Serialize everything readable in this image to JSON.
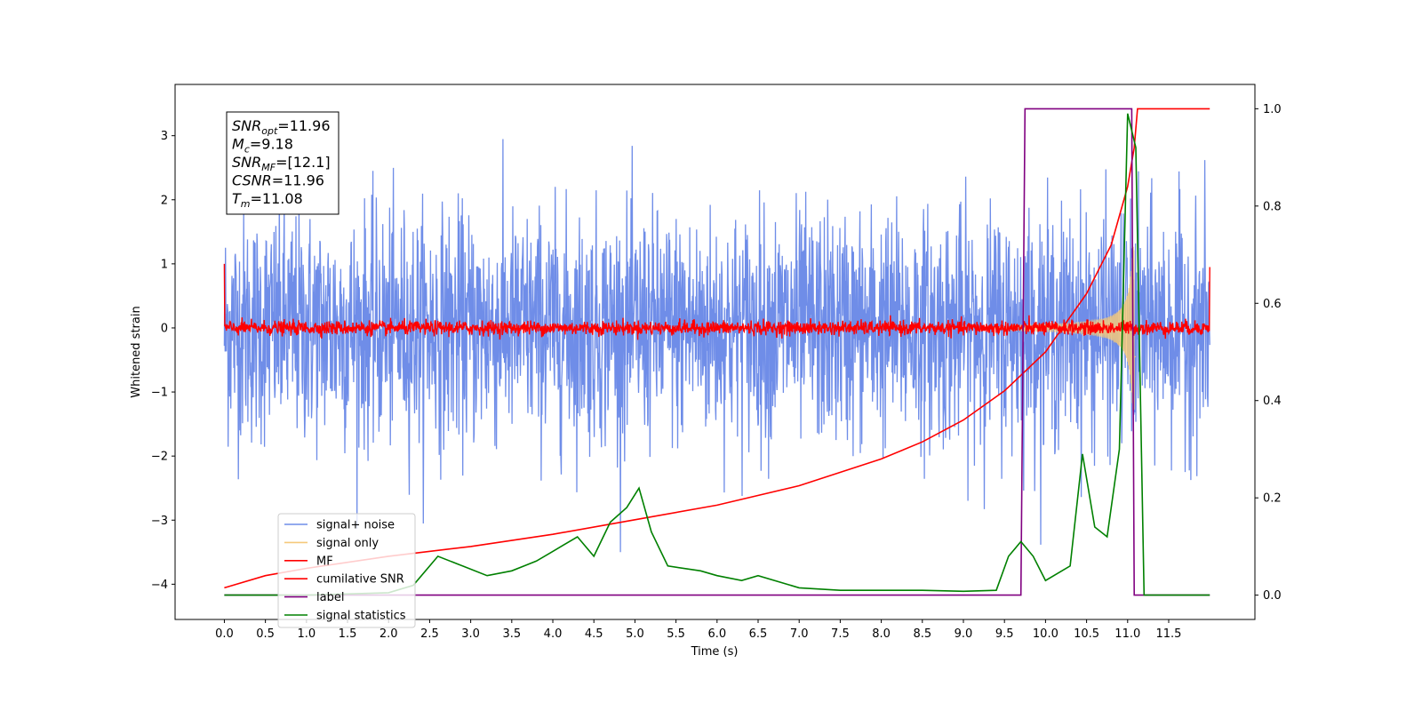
{
  "chart_data": {
    "type": "line",
    "xlabel": "Time (s)",
    "ylabel": "Whitened strain",
    "xlim": [
      -0.6,
      12.55
    ],
    "ylim": [
      -4.55,
      3.8
    ],
    "ylim_right": [
      -0.05,
      1.05
    ],
    "x_ticks": [
      0.0,
      0.5,
      1.0,
      1.5,
      2.0,
      2.5,
      3.0,
      3.5,
      4.0,
      4.5,
      5.0,
      5.5,
      6.0,
      6.5,
      7.0,
      7.5,
      8.0,
      8.5,
      9.0,
      9.5,
      10.0,
      10.5,
      11.0,
      11.5
    ],
    "x_tick_labels": [
      "0.0",
      "0.5",
      "1.0",
      "1.5",
      "2.0",
      "2.5",
      "3.0",
      "3.5",
      "4.0",
      "4.5",
      "5.0",
      "5.5",
      "6.0",
      "6.5",
      "7.0",
      "7.5",
      "8.0",
      "8.5",
      "9.0",
      "9.5",
      "10.0",
      "10.5",
      "11.0",
      "11.5"
    ],
    "y_ticks": [
      -4,
      -3,
      -2,
      -1,
      0,
      1,
      2,
      3
    ],
    "y_tick_labels": [
      "−4",
      "−3",
      "−2",
      "−1",
      "0",
      "1",
      "2",
      "3"
    ],
    "y_right_ticks": [
      0.0,
      0.2,
      0.4,
      0.6,
      0.8,
      1.0
    ],
    "y_right_tick_labels": [
      "0.0",
      "0.2",
      "0.4",
      "0.6",
      "0.8",
      "1.0"
    ],
    "grid": false,
    "legend_position": "lower-left",
    "annotation": [
      {
        "name": "SNR",
        "sub": "opt",
        "value": "=11.96"
      },
      {
        "name": "M",
        "sub": "c",
        "value": "=9.18"
      },
      {
        "name": "SNR",
        "sub": "MF",
        "value": "=[12.1]"
      },
      {
        "name": "CSNR",
        "sub": "",
        "value": "=11.96"
      },
      {
        "name": "T",
        "sub": "m",
        "value": "=11.08"
      }
    ],
    "series": [
      {
        "name": "signal+ noise",
        "color": "#6f8de8",
        "axis": "left",
        "note": "whitened noise, std approx 0.9, range approx -3.5 to 3.5"
      },
      {
        "name": "signal only",
        "color": "#f5c97a",
        "axis": "left",
        "note": "chirp from approx 9.5 s, envelope peaking approx 1.2 near 11.08 s"
      },
      {
        "name": "MF",
        "color": "#ff0000",
        "axis": "left",
        "note": "matched filter output, near 0 with approx 0.1 noise, edges approx 1.0"
      },
      {
        "name": "cumilative SNR",
        "color": "#ff0000",
        "axis": "right",
        "x": [
          0.0,
          0.5,
          1.0,
          2.0,
          3.0,
          4.0,
          5.0,
          6.0,
          7.0,
          8.0,
          8.5,
          9.0,
          9.5,
          10.0,
          10.5,
          10.8,
          11.0,
          11.08,
          11.12,
          12.0
        ],
        "values": [
          0.015,
          0.04,
          0.055,
          0.08,
          0.1,
          0.125,
          0.155,
          0.185,
          0.225,
          0.28,
          0.315,
          0.36,
          0.42,
          0.5,
          0.62,
          0.72,
          0.84,
          0.92,
          1.0,
          1.0
        ]
      },
      {
        "name": "label",
        "color": "#800080",
        "axis": "right",
        "x": [
          0.0,
          9.7,
          9.75,
          11.05,
          11.08,
          12.0
        ],
        "values": [
          0.0,
          0.0,
          1.0,
          1.0,
          0.0,
          0.0
        ]
      },
      {
        "name": "signal statistics",
        "color": "#008000",
        "axis": "right",
        "x": [
          0.0,
          1.0,
          2.0,
          2.3,
          2.6,
          2.9,
          3.2,
          3.5,
          3.8,
          4.0,
          4.3,
          4.5,
          4.7,
          4.9,
          5.05,
          5.2,
          5.4,
          5.8,
          6.0,
          6.3,
          6.5,
          7.0,
          7.5,
          8.0,
          8.5,
          9.0,
          9.4,
          9.55,
          9.7,
          9.85,
          10.0,
          10.3,
          10.45,
          10.6,
          10.75,
          10.9,
          11.0,
          11.1,
          11.2,
          12.0
        ],
        "values": [
          0.0,
          0.0,
          0.005,
          0.02,
          0.08,
          0.06,
          0.04,
          0.05,
          0.07,
          0.09,
          0.12,
          0.08,
          0.15,
          0.18,
          0.22,
          0.13,
          0.06,
          0.05,
          0.04,
          0.03,
          0.04,
          0.015,
          0.01,
          0.01,
          0.01,
          0.008,
          0.01,
          0.08,
          0.11,
          0.08,
          0.03,
          0.06,
          0.29,
          0.14,
          0.12,
          0.3,
          0.99,
          0.92,
          0.0,
          0.0
        ]
      }
    ]
  }
}
